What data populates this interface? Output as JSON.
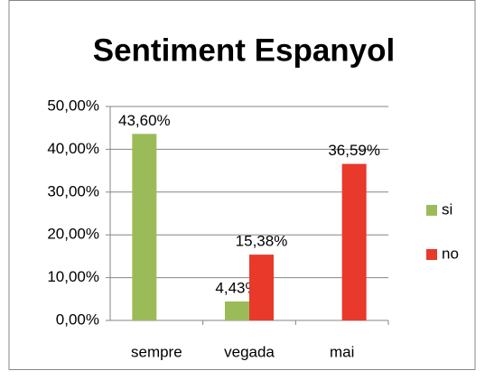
{
  "chart_data": {
    "type": "bar",
    "title": "Sentiment Espanyol",
    "categories": [
      "sempre",
      "vegada",
      "mai"
    ],
    "series": [
      {
        "name": "si",
        "color": "#9bbb59",
        "values": [
          43.6,
          4.43,
          null
        ],
        "value_labels": [
          "43,60%",
          "4,43%",
          null
        ]
      },
      {
        "name": "no",
        "color": "#e8392b",
        "values": [
          null,
          15.38,
          36.59
        ],
        "value_labels": [
          null,
          "15,38%",
          "36,59%"
        ]
      }
    ],
    "ylim": [
      0,
      50
    ],
    "yticks": [
      {
        "value": 0,
        "label": "0,00%"
      },
      {
        "value": 10,
        "label": "10,00%"
      },
      {
        "value": 20,
        "label": "20,00%"
      },
      {
        "value": 30,
        "label": "30,00%"
      },
      {
        "value": 40,
        "label": "40,00%"
      },
      {
        "value": 50,
        "label": "50,00%"
      }
    ],
    "grid": true,
    "legend": "right"
  }
}
